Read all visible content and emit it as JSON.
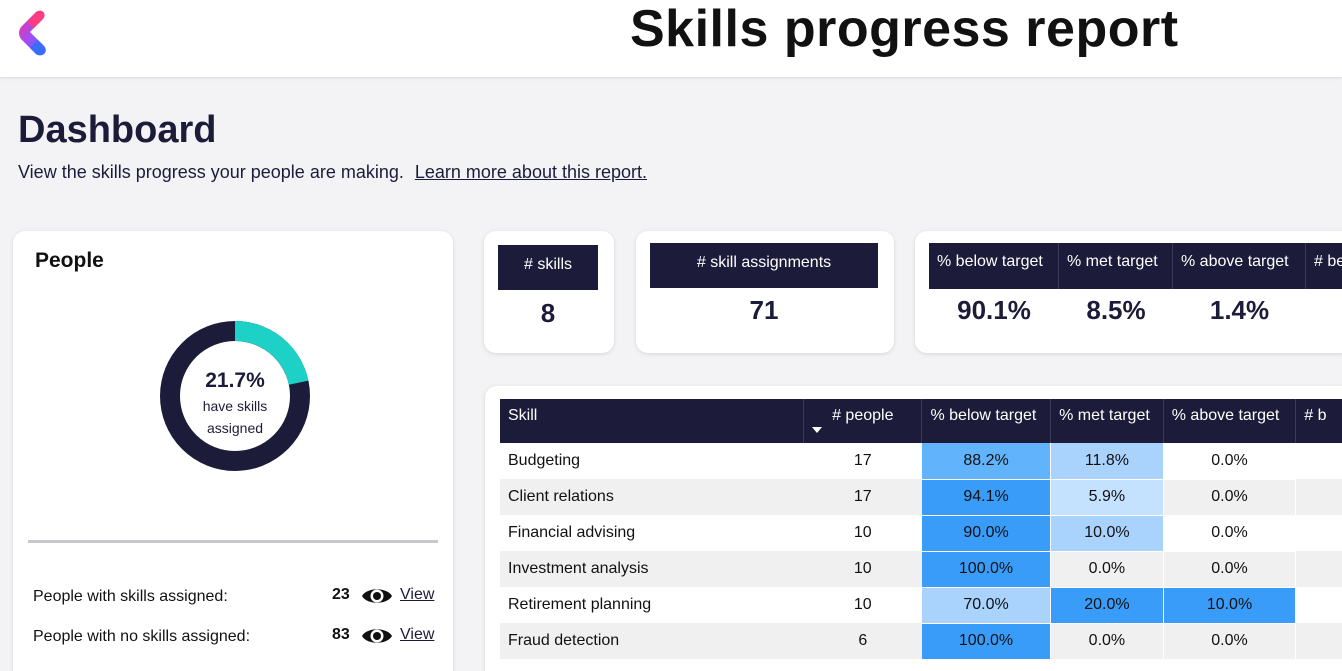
{
  "header": {
    "title": "Skills progress report",
    "logo_icon": "brand-logo"
  },
  "dashboard": {
    "title": "Dashboard",
    "subtitle": "View the skills progress your people are making.",
    "learn_more": "Learn more about this report."
  },
  "people": {
    "title": "People",
    "donut_fraction": 0.217,
    "donut_pct": "21.7%",
    "donut_label": "have skills assigned",
    "colors": {
      "filled": "#1ed1c6",
      "rest": "#1c1c3a"
    },
    "rows": [
      {
        "label": "People with skills assigned:",
        "count": "23",
        "view": "View",
        "icon": "eye-icon"
      },
      {
        "label": "People with no skills assigned:",
        "count": "83",
        "view": "View",
        "icon": "eye-icon"
      }
    ]
  },
  "kpis": {
    "skills": {
      "label": "# skills",
      "value": "8"
    },
    "assignments": {
      "label": "# skill assignments",
      "value": "71"
    }
  },
  "pct_summary": {
    "headers": [
      "% below target",
      "% met target",
      "% above target",
      "# be"
    ],
    "values": [
      "90.1%",
      "8.5%",
      "1.4%",
      ""
    ]
  },
  "skills_table": {
    "columns": [
      "Skill",
      "# people",
      "% below target",
      "% met target",
      "% above target",
      "# b"
    ],
    "sort_icon": "sort-down-icon",
    "colors": {
      "dark": "#3a9cf9",
      "medium": "#61b3fb",
      "light": "#a9d3fd",
      "lighter": "#c4e1fd",
      "none": ""
    },
    "rows": [
      {
        "skill": "Budgeting",
        "people": "17",
        "below": "88.2%",
        "met": "11.8%",
        "above": "0.0%",
        "below_shade": "medium",
        "met_shade": "light",
        "above_shade": "none"
      },
      {
        "skill": "Client relations",
        "people": "17",
        "below": "94.1%",
        "met": "5.9%",
        "above": "0.0%",
        "below_shade": "dark",
        "met_shade": "lighter",
        "above_shade": "none"
      },
      {
        "skill": "Financial advising",
        "people": "10",
        "below": "90.0%",
        "met": "10.0%",
        "above": "0.0%",
        "below_shade": "dark",
        "met_shade": "light",
        "above_shade": "none"
      },
      {
        "skill": "Investment analysis",
        "people": "10",
        "below": "100.0%",
        "met": "0.0%",
        "above": "0.0%",
        "below_shade": "dark",
        "met_shade": "none",
        "above_shade": "none"
      },
      {
        "skill": "Retirement planning",
        "people": "10",
        "below": "70.0%",
        "met": "20.0%",
        "above": "10.0%",
        "below_shade": "light",
        "met_shade": "dark",
        "above_shade": "dark"
      },
      {
        "skill": "Fraud detection",
        "people": "6",
        "below": "100.0%",
        "met": "0.0%",
        "above": "0.0%",
        "below_shade": "dark",
        "met_shade": "none",
        "above_shade": "none"
      }
    ]
  }
}
